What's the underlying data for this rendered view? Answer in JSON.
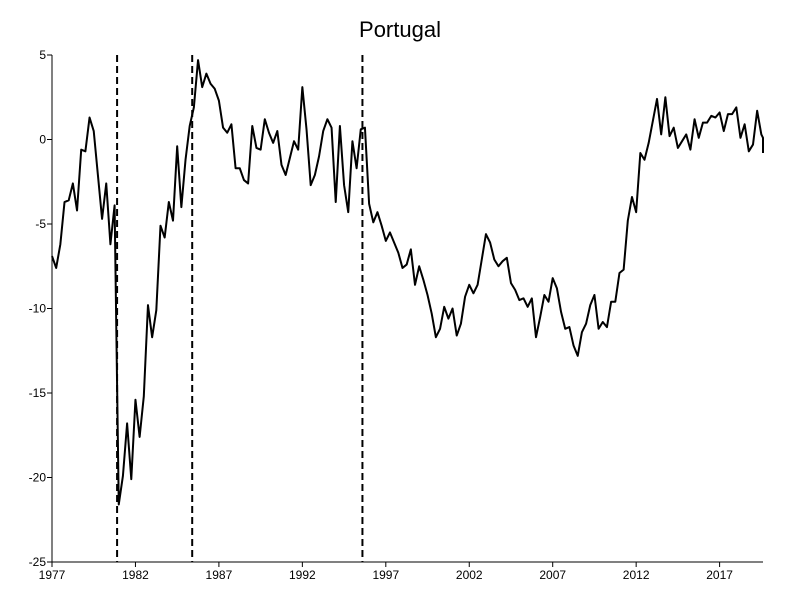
{
  "chart_data": {
    "type": "line",
    "title": "Portugal",
    "xlabel": "",
    "ylabel": "",
    "xlim": [
      1977.0,
      2019.6
    ],
    "ylim": [
      -25,
      5
    ],
    "xticks": [
      1977,
      1982,
      1987,
      1992,
      1997,
      2002,
      2007,
      2012,
      2017
    ],
    "yticks": [
      5,
      0,
      -5,
      -10,
      -15,
      -20,
      -25
    ],
    "grid": false,
    "legend": "none",
    "vertical_lines": [
      1980.9,
      1985.4,
      1995.6
    ],
    "series": [
      {
        "points": [
          [
            1977.0,
            -6.9
          ],
          [
            1977.25,
            -7.6
          ],
          [
            1977.5,
            -6.2
          ],
          [
            1977.75,
            -3.7
          ],
          [
            1978.0,
            -3.6
          ],
          [
            1978.25,
            -2.6
          ],
          [
            1978.5,
            -4.2
          ],
          [
            1978.75,
            -0.6
          ],
          [
            1979.0,
            -0.7
          ],
          [
            1979.25,
            1.3
          ],
          [
            1979.5,
            0.5
          ],
          [
            1979.75,
            -2.1
          ],
          [
            1980.0,
            -4.7
          ],
          [
            1980.25,
            -2.6
          ],
          [
            1980.5,
            -6.2
          ],
          [
            1980.75,
            -3.9
          ],
          [
            1981.0,
            -21.6
          ],
          [
            1981.25,
            -19.9
          ],
          [
            1981.5,
            -16.8
          ],
          [
            1981.75,
            -20.1
          ],
          [
            1982.0,
            -15.4
          ],
          [
            1982.25,
            -17.6
          ],
          [
            1982.5,
            -15.2
          ],
          [
            1982.75,
            -9.8
          ],
          [
            1983.0,
            -11.7
          ],
          [
            1983.25,
            -10.1
          ],
          [
            1983.5,
            -5.1
          ],
          [
            1983.75,
            -5.8
          ],
          [
            1984.0,
            -3.7
          ],
          [
            1984.25,
            -4.8
          ],
          [
            1984.5,
            -0.4
          ],
          [
            1984.75,
            -4.0
          ],
          [
            1985.0,
            -1.2
          ],
          [
            1985.25,
            0.8
          ],
          [
            1985.5,
            1.9
          ],
          [
            1985.75,
            4.7
          ],
          [
            1986.0,
            3.1
          ],
          [
            1986.25,
            3.9
          ],
          [
            1986.5,
            3.3
          ],
          [
            1986.75,
            3.0
          ],
          [
            1987.0,
            2.3
          ],
          [
            1987.25,
            0.7
          ],
          [
            1987.5,
            0.4
          ],
          [
            1987.75,
            0.9
          ],
          [
            1988.0,
            -1.7
          ],
          [
            1988.25,
            -1.7
          ],
          [
            1988.5,
            -2.4
          ],
          [
            1988.75,
            -2.6
          ],
          [
            1989.0,
            0.8
          ],
          [
            1989.25,
            -0.5
          ],
          [
            1989.5,
            -0.6
          ],
          [
            1989.75,
            1.2
          ],
          [
            1990.0,
            0.4
          ],
          [
            1990.25,
            -0.2
          ],
          [
            1990.5,
            0.5
          ],
          [
            1990.75,
            -1.5
          ],
          [
            1991.0,
            -2.1
          ],
          [
            1991.25,
            -1.1
          ],
          [
            1991.5,
            -0.1
          ],
          [
            1991.75,
            -0.6
          ],
          [
            1992.0,
            3.1
          ],
          [
            1992.25,
            0.6
          ],
          [
            1992.5,
            -2.7
          ],
          [
            1992.75,
            -2.1
          ],
          [
            1993.0,
            -1.0
          ],
          [
            1993.25,
            0.5
          ],
          [
            1993.5,
            1.2
          ],
          [
            1993.75,
            0.7
          ],
          [
            1994.0,
            -3.7
          ],
          [
            1994.25,
            0.8
          ],
          [
            1994.5,
            -2.7
          ],
          [
            1994.75,
            -4.3
          ],
          [
            1995.0,
            -0.1
          ],
          [
            1995.25,
            -1.7
          ],
          [
            1995.5,
            0.6
          ],
          [
            1995.75,
            0.7
          ],
          [
            1996.0,
            -3.8
          ],
          [
            1996.25,
            -4.9
          ],
          [
            1996.5,
            -4.3
          ],
          [
            1996.75,
            -5.1
          ],
          [
            1997.0,
            -6.0
          ],
          [
            1997.25,
            -5.5
          ],
          [
            1997.5,
            -6.1
          ],
          [
            1997.75,
            -6.7
          ],
          [
            1998.0,
            -7.6
          ],
          [
            1998.25,
            -7.4
          ],
          [
            1998.5,
            -6.5
          ],
          [
            1998.75,
            -8.6
          ],
          [
            1999.0,
            -7.5
          ],
          [
            1999.25,
            -8.3
          ],
          [
            1999.5,
            -9.2
          ],
          [
            1999.75,
            -10.3
          ],
          [
            2000.0,
            -11.7
          ],
          [
            2000.25,
            -11.2
          ],
          [
            2000.5,
            -9.9
          ],
          [
            2000.75,
            -10.6
          ],
          [
            2001.0,
            -10.0
          ],
          [
            2001.25,
            -11.6
          ],
          [
            2001.5,
            -10.9
          ],
          [
            2001.75,
            -9.3
          ],
          [
            2002.0,
            -8.6
          ],
          [
            2002.25,
            -9.1
          ],
          [
            2002.5,
            -8.6
          ],
          [
            2002.75,
            -7.1
          ],
          [
            2003.0,
            -5.6
          ],
          [
            2003.25,
            -6.1
          ],
          [
            2003.5,
            -7.1
          ],
          [
            2003.75,
            -7.5
          ],
          [
            2004.0,
            -7.2
          ],
          [
            2004.25,
            -7.0
          ],
          [
            2004.5,
            -8.5
          ],
          [
            2004.75,
            -8.9
          ],
          [
            2005.0,
            -9.5
          ],
          [
            2005.25,
            -9.4
          ],
          [
            2005.5,
            -9.9
          ],
          [
            2005.75,
            -9.4
          ],
          [
            2006.0,
            -11.7
          ],
          [
            2006.25,
            -10.5
          ],
          [
            2006.5,
            -9.2
          ],
          [
            2006.75,
            -9.6
          ],
          [
            2007.0,
            -8.2
          ],
          [
            2007.25,
            -8.8
          ],
          [
            2007.5,
            -10.2
          ],
          [
            2007.75,
            -11.2
          ],
          [
            2008.0,
            -11.1
          ],
          [
            2008.25,
            -12.2
          ],
          [
            2008.5,
            -12.8
          ],
          [
            2008.75,
            -11.4
          ],
          [
            2009.0,
            -10.9
          ],
          [
            2009.25,
            -9.8
          ],
          [
            2009.5,
            -9.2
          ],
          [
            2009.75,
            -11.2
          ],
          [
            2010.0,
            -10.8
          ],
          [
            2010.25,
            -11.1
          ],
          [
            2010.5,
            -9.6
          ],
          [
            2010.75,
            -9.6
          ],
          [
            2011.0,
            -7.9
          ],
          [
            2011.25,
            -7.7
          ],
          [
            2011.5,
            -4.8
          ],
          [
            2011.75,
            -3.4
          ],
          [
            2012.0,
            -4.3
          ],
          [
            2012.25,
            -0.8
          ],
          [
            2012.5,
            -1.2
          ],
          [
            2012.75,
            -0.2
          ],
          [
            2013.0,
            1.1
          ],
          [
            2013.25,
            2.4
          ],
          [
            2013.5,
            0.3
          ],
          [
            2013.75,
            2.5
          ],
          [
            2014.0,
            0.2
          ],
          [
            2014.25,
            0.7
          ],
          [
            2014.5,
            -0.5
          ],
          [
            2014.75,
            -0.1
          ],
          [
            2015.0,
            0.3
          ],
          [
            2015.25,
            -0.6
          ],
          [
            2015.5,
            1.2
          ],
          [
            2015.75,
            0.1
          ],
          [
            2016.0,
            1.0
          ],
          [
            2016.25,
            1.0
          ],
          [
            2016.5,
            1.4
          ],
          [
            2016.75,
            1.3
          ],
          [
            2017.0,
            1.6
          ],
          [
            2017.25,
            0.5
          ],
          [
            2017.5,
            1.5
          ],
          [
            2017.75,
            1.5
          ],
          [
            2018.0,
            1.9
          ],
          [
            2018.25,
            0.1
          ],
          [
            2018.5,
            0.9
          ],
          [
            2018.75,
            -0.7
          ],
          [
            2019.0,
            -0.3
          ],
          [
            2019.25,
            1.7
          ],
          [
            2019.5,
            0.3
          ],
          [
            2019.75,
            0.1
          ],
          [
            2020.0,
            -0.8
          ]
        ]
      }
    ]
  }
}
